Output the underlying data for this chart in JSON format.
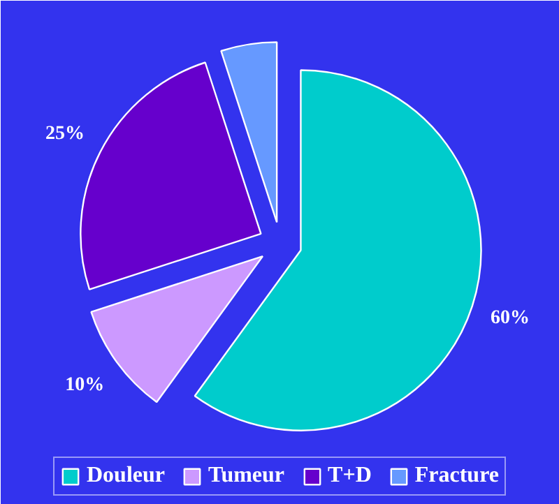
{
  "chart_data": {
    "type": "pie",
    "categories": [
      "Douleur",
      "Tumeur",
      "T+D",
      "Fracture"
    ],
    "values": [
      60,
      10,
      25,
      5
    ],
    "colors": [
      "#00cccc",
      "#cc99ff",
      "#6600cc",
      "#6699ff"
    ],
    "value_labels": [
      "60%",
      "10%",
      "25%",
      null
    ],
    "legend": "bottom"
  }
}
